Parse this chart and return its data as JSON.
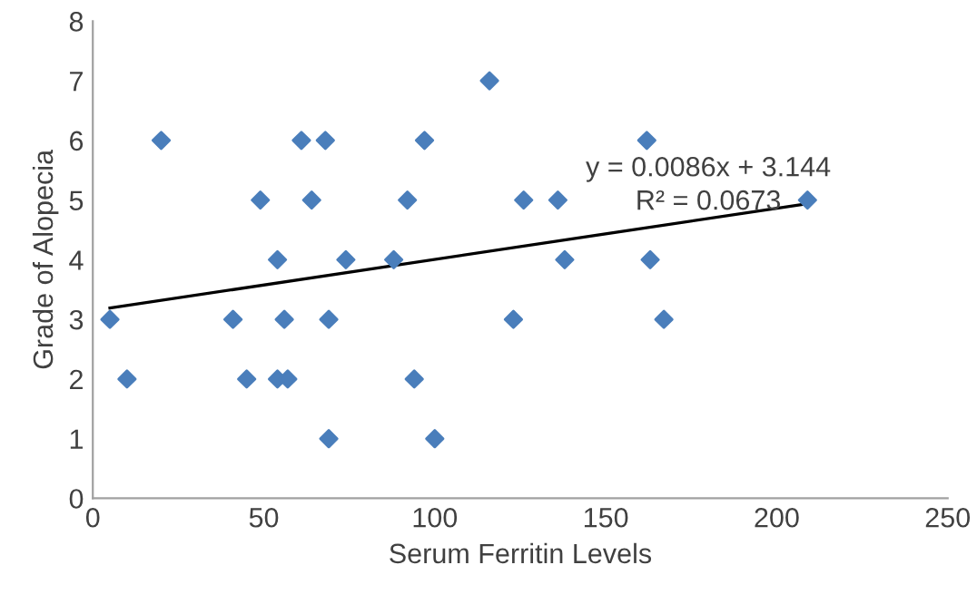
{
  "chart_data": {
    "type": "scatter",
    "xlabel": "Serum Ferritin Levels",
    "ylabel": "Grade of Alopecia",
    "xlim": [
      0,
      250
    ],
    "xticks": [
      0,
      50,
      100,
      150,
      200,
      250
    ],
    "ylim": [
      0,
      8
    ],
    "yticks": [
      0,
      1,
      2,
      3,
      4,
      5,
      6,
      7,
      8
    ],
    "grid": false,
    "marker": "diamond",
    "series": [
      {
        "color": "#4a7ebb",
        "x": [
          5,
          10,
          20,
          41,
          45,
          49,
          54,
          54,
          57,
          56,
          61,
          64,
          68,
          69,
          69,
          74,
          88,
          92,
          94,
          97,
          100,
          116,
          123,
          126,
          136,
          138,
          162,
          163,
          167,
          209
        ],
        "values": [
          3,
          2,
          6,
          3,
          2,
          5,
          4,
          2,
          2,
          3,
          6,
          5,
          6,
          3,
          1,
          4,
          4,
          5,
          2,
          6,
          1,
          7,
          3,
          5,
          5,
          4,
          6,
          4,
          3,
          5
        ]
      },
      {
        "type": "line",
        "color": "#000000",
        "marker": "none",
        "x": [
          5,
          209
        ],
        "values": [
          3.19,
          4.94
        ]
      }
    ],
    "annotations": [
      "y = 0.0086x + 3.144",
      "R² = 0.0673"
    ]
  }
}
